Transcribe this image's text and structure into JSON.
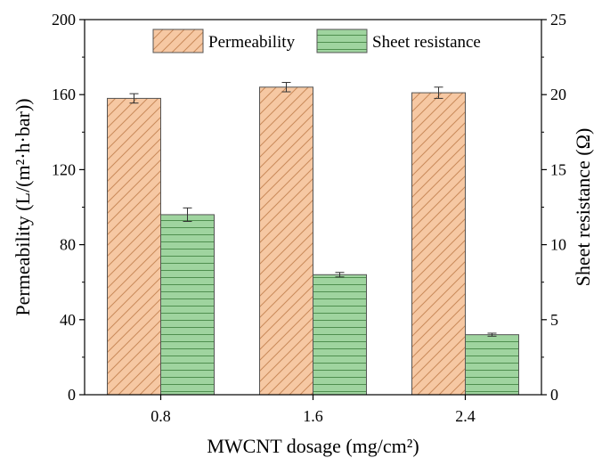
{
  "chart_data": {
    "type": "bar",
    "categories": [
      "0.8",
      "1.6",
      "2.4"
    ],
    "xlabel": "MWCNT dosage (mg/cm²)",
    "ylabel": "Permeability (L/(m²·h·bar))",
    "y2label": "Sheet resistance (Ω)",
    "ylim": [
      0,
      200
    ],
    "y2lim": [
      0,
      25
    ],
    "yticks": [
      0,
      40,
      80,
      120,
      160,
      200
    ],
    "y2ticks": [
      0,
      5,
      10,
      15,
      20,
      25
    ],
    "grid": false,
    "legend_position": "top-center",
    "series": [
      {
        "name": "Permeability",
        "axis": "left",
        "values": [
          158,
          164,
          161
        ],
        "errors": [
          2.5,
          2.5,
          3
        ],
        "color": "#f6c8a3",
        "hatch": "diagonal",
        "hatch_color": "#c98a5a"
      },
      {
        "name": "Sheet resistance",
        "axis": "right",
        "values": [
          12,
          8,
          4
        ],
        "errors": [
          0.45,
          0.15,
          0.1
        ],
        "color": "#9fd49f",
        "hatch": "horizontal",
        "hatch_color": "#4f8f4f"
      }
    ]
  }
}
